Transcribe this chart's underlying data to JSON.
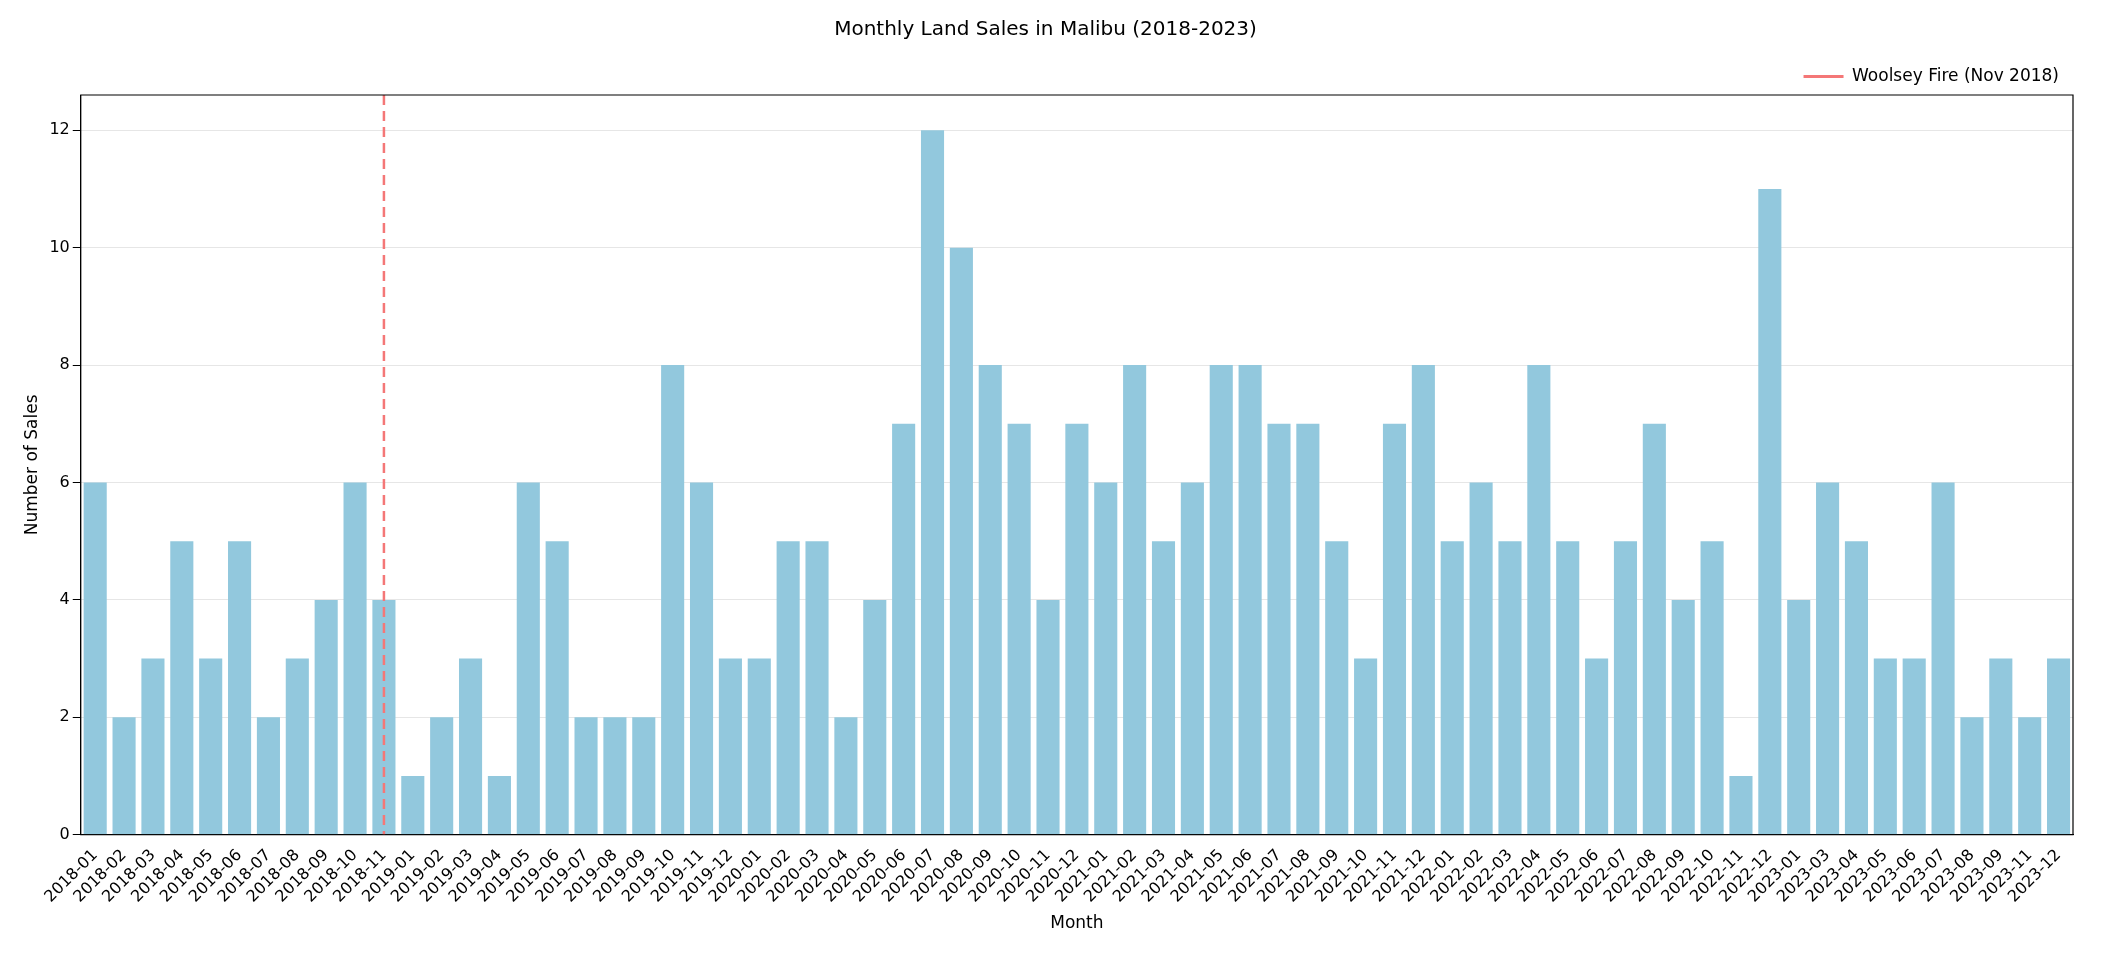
{
  "chart_data": {
    "type": "bar",
    "title": "Monthly Land Sales in Malibu (2018-2023)",
    "xlabel": "Month",
    "ylabel": "Number of Sales",
    "categories": [
      "2018-01",
      "2018-02",
      "2018-03",
      "2018-04",
      "2018-05",
      "2018-06",
      "2018-07",
      "2018-08",
      "2018-09",
      "2018-10",
      "2018-11",
      "2019-01",
      "2019-02",
      "2019-03",
      "2019-04",
      "2019-05",
      "2019-06",
      "2019-07",
      "2019-08",
      "2019-09",
      "2019-10",
      "2019-11",
      "2019-12",
      "2020-01",
      "2020-02",
      "2020-03",
      "2020-04",
      "2020-05",
      "2020-06",
      "2020-07",
      "2020-08",
      "2020-09",
      "2020-10",
      "2020-11",
      "2020-12",
      "2021-01",
      "2021-02",
      "2021-03",
      "2021-04",
      "2021-05",
      "2021-06",
      "2021-07",
      "2021-08",
      "2021-09",
      "2021-10",
      "2021-11",
      "2021-12",
      "2022-01",
      "2022-02",
      "2022-03",
      "2022-04",
      "2022-05",
      "2022-06",
      "2022-07",
      "2022-08",
      "2022-09",
      "2022-10",
      "2022-11",
      "2022-12",
      "2023-01",
      "2023-03",
      "2023-04",
      "2023-05",
      "2023-06",
      "2023-07",
      "2023-08",
      "2023-09",
      "2023-11",
      "2023-12"
    ],
    "values": [
      6,
      2,
      3,
      5,
      3,
      5,
      2,
      3,
      4,
      6,
      4,
      1,
      2,
      3,
      1,
      6,
      5,
      2,
      2,
      2,
      8,
      6,
      3,
      3,
      5,
      5,
      2,
      4,
      7,
      12,
      10,
      8,
      7,
      4,
      7,
      6,
      8,
      5,
      6,
      8,
      8,
      7,
      7,
      5,
      3,
      7,
      8,
      5,
      6,
      5,
      8,
      5,
      3,
      5,
      7,
      4,
      5,
      1,
      11,
      4,
      6,
      5,
      3,
      3,
      6,
      2,
      3,
      2,
      3
    ],
    "color": "#92c8dd",
    "ylim": [
      0,
      12.6
    ],
    "yticks": [
      0,
      2,
      4,
      6,
      8,
      10,
      12
    ],
    "grid": "y",
    "legend": "top right",
    "ref_lines": [
      {
        "axis": "x",
        "value": "2018-11",
        "label": "Woolsey Fire (Nov 2018)",
        "color": "#f47777",
        "line_style": "dashed"
      }
    ]
  }
}
